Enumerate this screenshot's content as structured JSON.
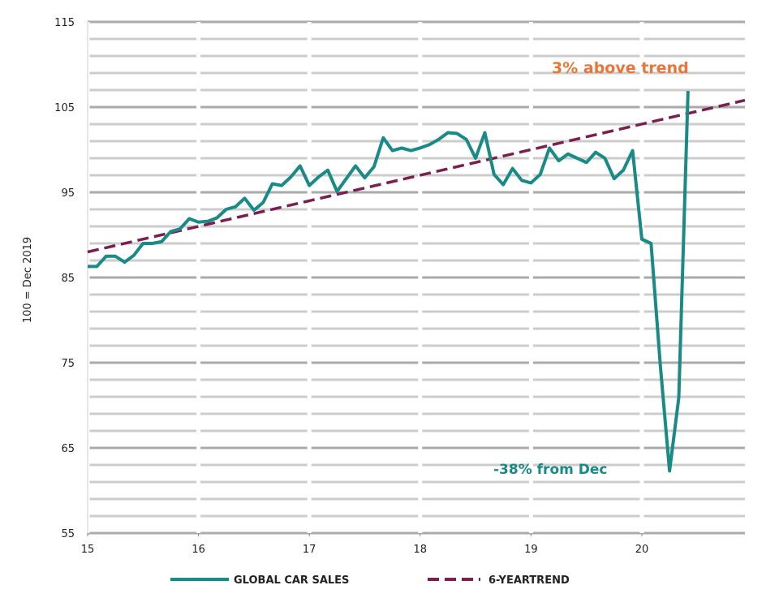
{
  "chart_data": {
    "type": "line",
    "title": "",
    "xlabel": "",
    "ylabel": "100 = Dec 2019",
    "ylim": [
      55,
      115
    ],
    "xlim": [
      2015.0,
      2020.93
    ],
    "yticks": [
      55,
      65,
      75,
      85,
      95,
      105,
      115
    ],
    "ygrid_step": 2,
    "xticks": [
      {
        "value": 2015,
        "label": "15"
      },
      {
        "value": 2016,
        "label": "16"
      },
      {
        "value": 2017,
        "label": "17"
      },
      {
        "value": 2018,
        "label": "18"
      },
      {
        "value": 2019,
        "label": "19"
      },
      {
        "value": 2020,
        "label": "20"
      }
    ],
    "grid": true,
    "legend_position": "bottom",
    "series": [
      {
        "name": "GLOBAL CAR SALES",
        "color": "#1a8a86",
        "style": "solid",
        "start": "2015-01",
        "frequency": "monthly",
        "values": [
          86.3,
          86.3,
          87.5,
          87.5,
          86.8,
          87.6,
          89,
          89,
          89.2,
          90.4,
          90.7,
          91.9,
          91.5,
          91.6,
          92,
          93,
          93.3,
          94.3,
          92.9,
          93.8,
          96,
          95.8,
          96.8,
          98.1,
          95.8,
          96.8,
          97.6,
          95.1,
          96.6,
          98.1,
          96.7,
          98,
          101.4,
          99.9,
          100.2,
          99.9,
          100.2,
          100.6,
          101.2,
          102,
          101.9,
          101.2,
          99,
          102,
          97.1,
          95.9,
          97.8,
          96.4,
          96.1,
          97.1,
          100.2,
          98.7,
          99.5,
          99,
          98.5,
          99.7,
          99,
          96.6,
          97.6,
          99.9,
          89.5,
          89,
          74.7,
          62.3,
          70.9,
          106.9
        ]
      },
      {
        "name": "6-YEARTREND",
        "color": "#7a2050",
        "style": "dashed",
        "x": [
          2015.0,
          2020.93
        ],
        "values": [
          88.0,
          105.8
        ]
      }
    ],
    "annotations": [
      {
        "text": "3% above trend",
        "color": "#e8763a",
        "x": 2020.4,
        "y": 108.5
      },
      {
        "text": "-38% from Dec",
        "color": "#1a8a86",
        "x": 2020.0,
        "y": 62.5
      }
    ]
  }
}
